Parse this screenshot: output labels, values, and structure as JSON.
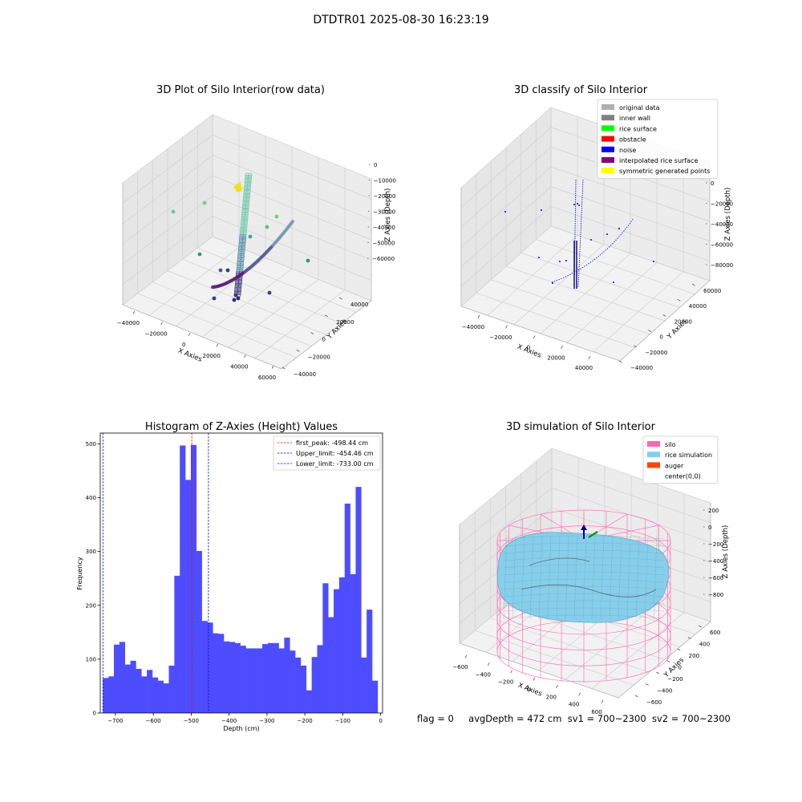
{
  "figure": {
    "suptitle": "DTDTR01 2025-08-30 16:23:19",
    "status": {
      "flag": "flag = 0",
      "avg_depth": "avgDepth = 472 cm",
      "sv1": "sv1 = 700~2300",
      "sv2": "sv2 = 700~2300"
    }
  },
  "panels": {
    "raw": {
      "title": "3D Plot of Silo Interior(row data)",
      "xlabel": "X Axies",
      "ylabel": "Y Axies",
      "zlabel": "Z Axies (Depth)",
      "xticks": [
        "−40000",
        "−20000",
        "0",
        "20000",
        "40000",
        "60000"
      ],
      "yticks": [
        "−40000",
        "−20000",
        "0",
        "20000",
        "40000"
      ],
      "zticks": [
        "0",
        "−10000",
        "−20000",
        "−30000",
        "−40000",
        "−50000",
        "−60000"
      ]
    },
    "classify": {
      "title": "3D classify of Silo Interior",
      "xlabel": "X Axies",
      "ylabel": "Y Axies",
      "zlabel": "Z Axies (Depth)",
      "xticks": [
        "−40000",
        "−20000",
        "0",
        "20000",
        "40000"
      ],
      "yticks": [
        "−40000",
        "−20000",
        "0",
        "20000",
        "40000",
        "60000"
      ],
      "zticks": [
        "0",
        "−20000",
        "−40000",
        "−60000",
        "−80000"
      ],
      "legend": [
        {
          "label": "original data",
          "color": "#b0b0b0"
        },
        {
          "label": "inner wall",
          "color": "#808080"
        },
        {
          "label": "rice surface",
          "color": "#00ff00"
        },
        {
          "label": "obstacle",
          "color": "#ff0000"
        },
        {
          "label": "noise",
          "color": "#0000ff"
        },
        {
          "label": "interpolated rice surface",
          "color": "#800080"
        },
        {
          "label": "symmetric generated points",
          "color": "#ffff00"
        }
      ]
    },
    "simulation": {
      "title": "3D simulation of Silo Interior",
      "xlabel": "X Axies",
      "ylabel": "Y Axies",
      "zlabel": "Z Axies (Depth)",
      "xticks": [
        "−600",
        "−400",
        "−200",
        "0",
        "200",
        "400",
        "600"
      ],
      "yticks": [
        "−600",
        "−400",
        "−200",
        "0",
        "200",
        "400",
        "600"
      ],
      "zticks": [
        "200",
        "0",
        "−200",
        "−400",
        "−600",
        "−800"
      ],
      "legend": [
        {
          "label": "silo",
          "color": "#ff69b4"
        },
        {
          "label": "rice simulation",
          "color": "#87ceeb"
        },
        {
          "label": "auger",
          "color": "#ff4500"
        },
        {
          "label": "center(0,0)",
          "color": "#ffffff"
        }
      ]
    }
  },
  "chart_data": [
    {
      "type": "bar",
      "subtype": "histogram",
      "title": "Histogram of Z-Axies (Height) Values",
      "xlabel": "Depth (cm)",
      "ylabel": "Frequency",
      "xlim": [
        -740,
        5
      ],
      "ylim": [
        0,
        520
      ],
      "xticks": [
        -700,
        -600,
        -500,
        -400,
        -300,
        -200,
        -100,
        0
      ],
      "yticks": [
        0,
        100,
        200,
        300,
        400,
        500
      ],
      "bar_color": "#4d4dff",
      "bin_start": -733,
      "bin_width": 14.5,
      "values": [
        65,
        68,
        127,
        132,
        90,
        97,
        82,
        68,
        80,
        66,
        60,
        55,
        88,
        255,
        497,
        433,
        498,
        301,
        171,
        168,
        148,
        147,
        133,
        132,
        130,
        125,
        120,
        120,
        120,
        128,
        130,
        130,
        120,
        140,
        116,
        103,
        88,
        42,
        104,
        126,
        241,
        178,
        230,
        252,
        389,
        258,
        420,
        103,
        192,
        60
      ],
      "reference_lines": [
        {
          "label": "first_peak: -498.44 cm",
          "value": -498.44,
          "color": "#ff0000"
        },
        {
          "label": "Upper_limit: -454.46 cm",
          "value": -454.46,
          "color": "#0000ff"
        },
        {
          "label": "Lower_limit: -733.00 cm",
          "value": -733.0,
          "color": "#0000ff"
        }
      ],
      "legend_position": "top-right"
    }
  ]
}
